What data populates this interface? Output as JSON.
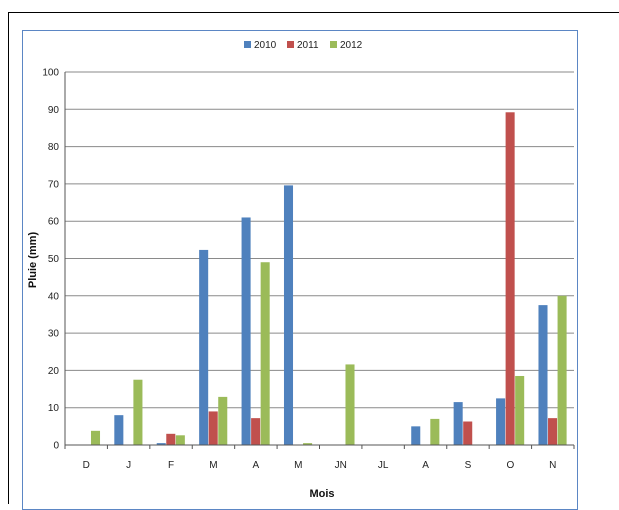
{
  "chart_data": {
    "type": "bar",
    "title": "",
    "xlabel": "Mois",
    "ylabel": "Pluie (mm)",
    "ylim": [
      0,
      100
    ],
    "yticks": [
      0,
      10,
      20,
      30,
      40,
      50,
      60,
      70,
      80,
      90,
      100
    ],
    "grid": true,
    "legend": "top-center",
    "categories": [
      "D",
      "J",
      "F",
      "M",
      "A",
      "M",
      "JN",
      "JL",
      "A",
      "S",
      "O",
      "N"
    ],
    "series": [
      {
        "name": "2010",
        "color": "#4f81bd",
        "values": [
          0,
          8,
          0.5,
          52.3,
          61,
          69.6,
          0,
          0,
          5,
          11.5,
          12.5,
          37.5
        ]
      },
      {
        "name": "2011",
        "color": "#c0504d",
        "values": [
          0,
          0,
          3,
          9,
          7.2,
          0,
          0,
          0,
          0,
          6.3,
          89.2,
          7.2
        ]
      },
      {
        "name": "2012",
        "color": "#9bbb59",
        "values": [
          3.8,
          17.5,
          2.6,
          12.9,
          49,
          0.5,
          21.6,
          0,
          7,
          0,
          18.5,
          40
        ]
      }
    ]
  }
}
